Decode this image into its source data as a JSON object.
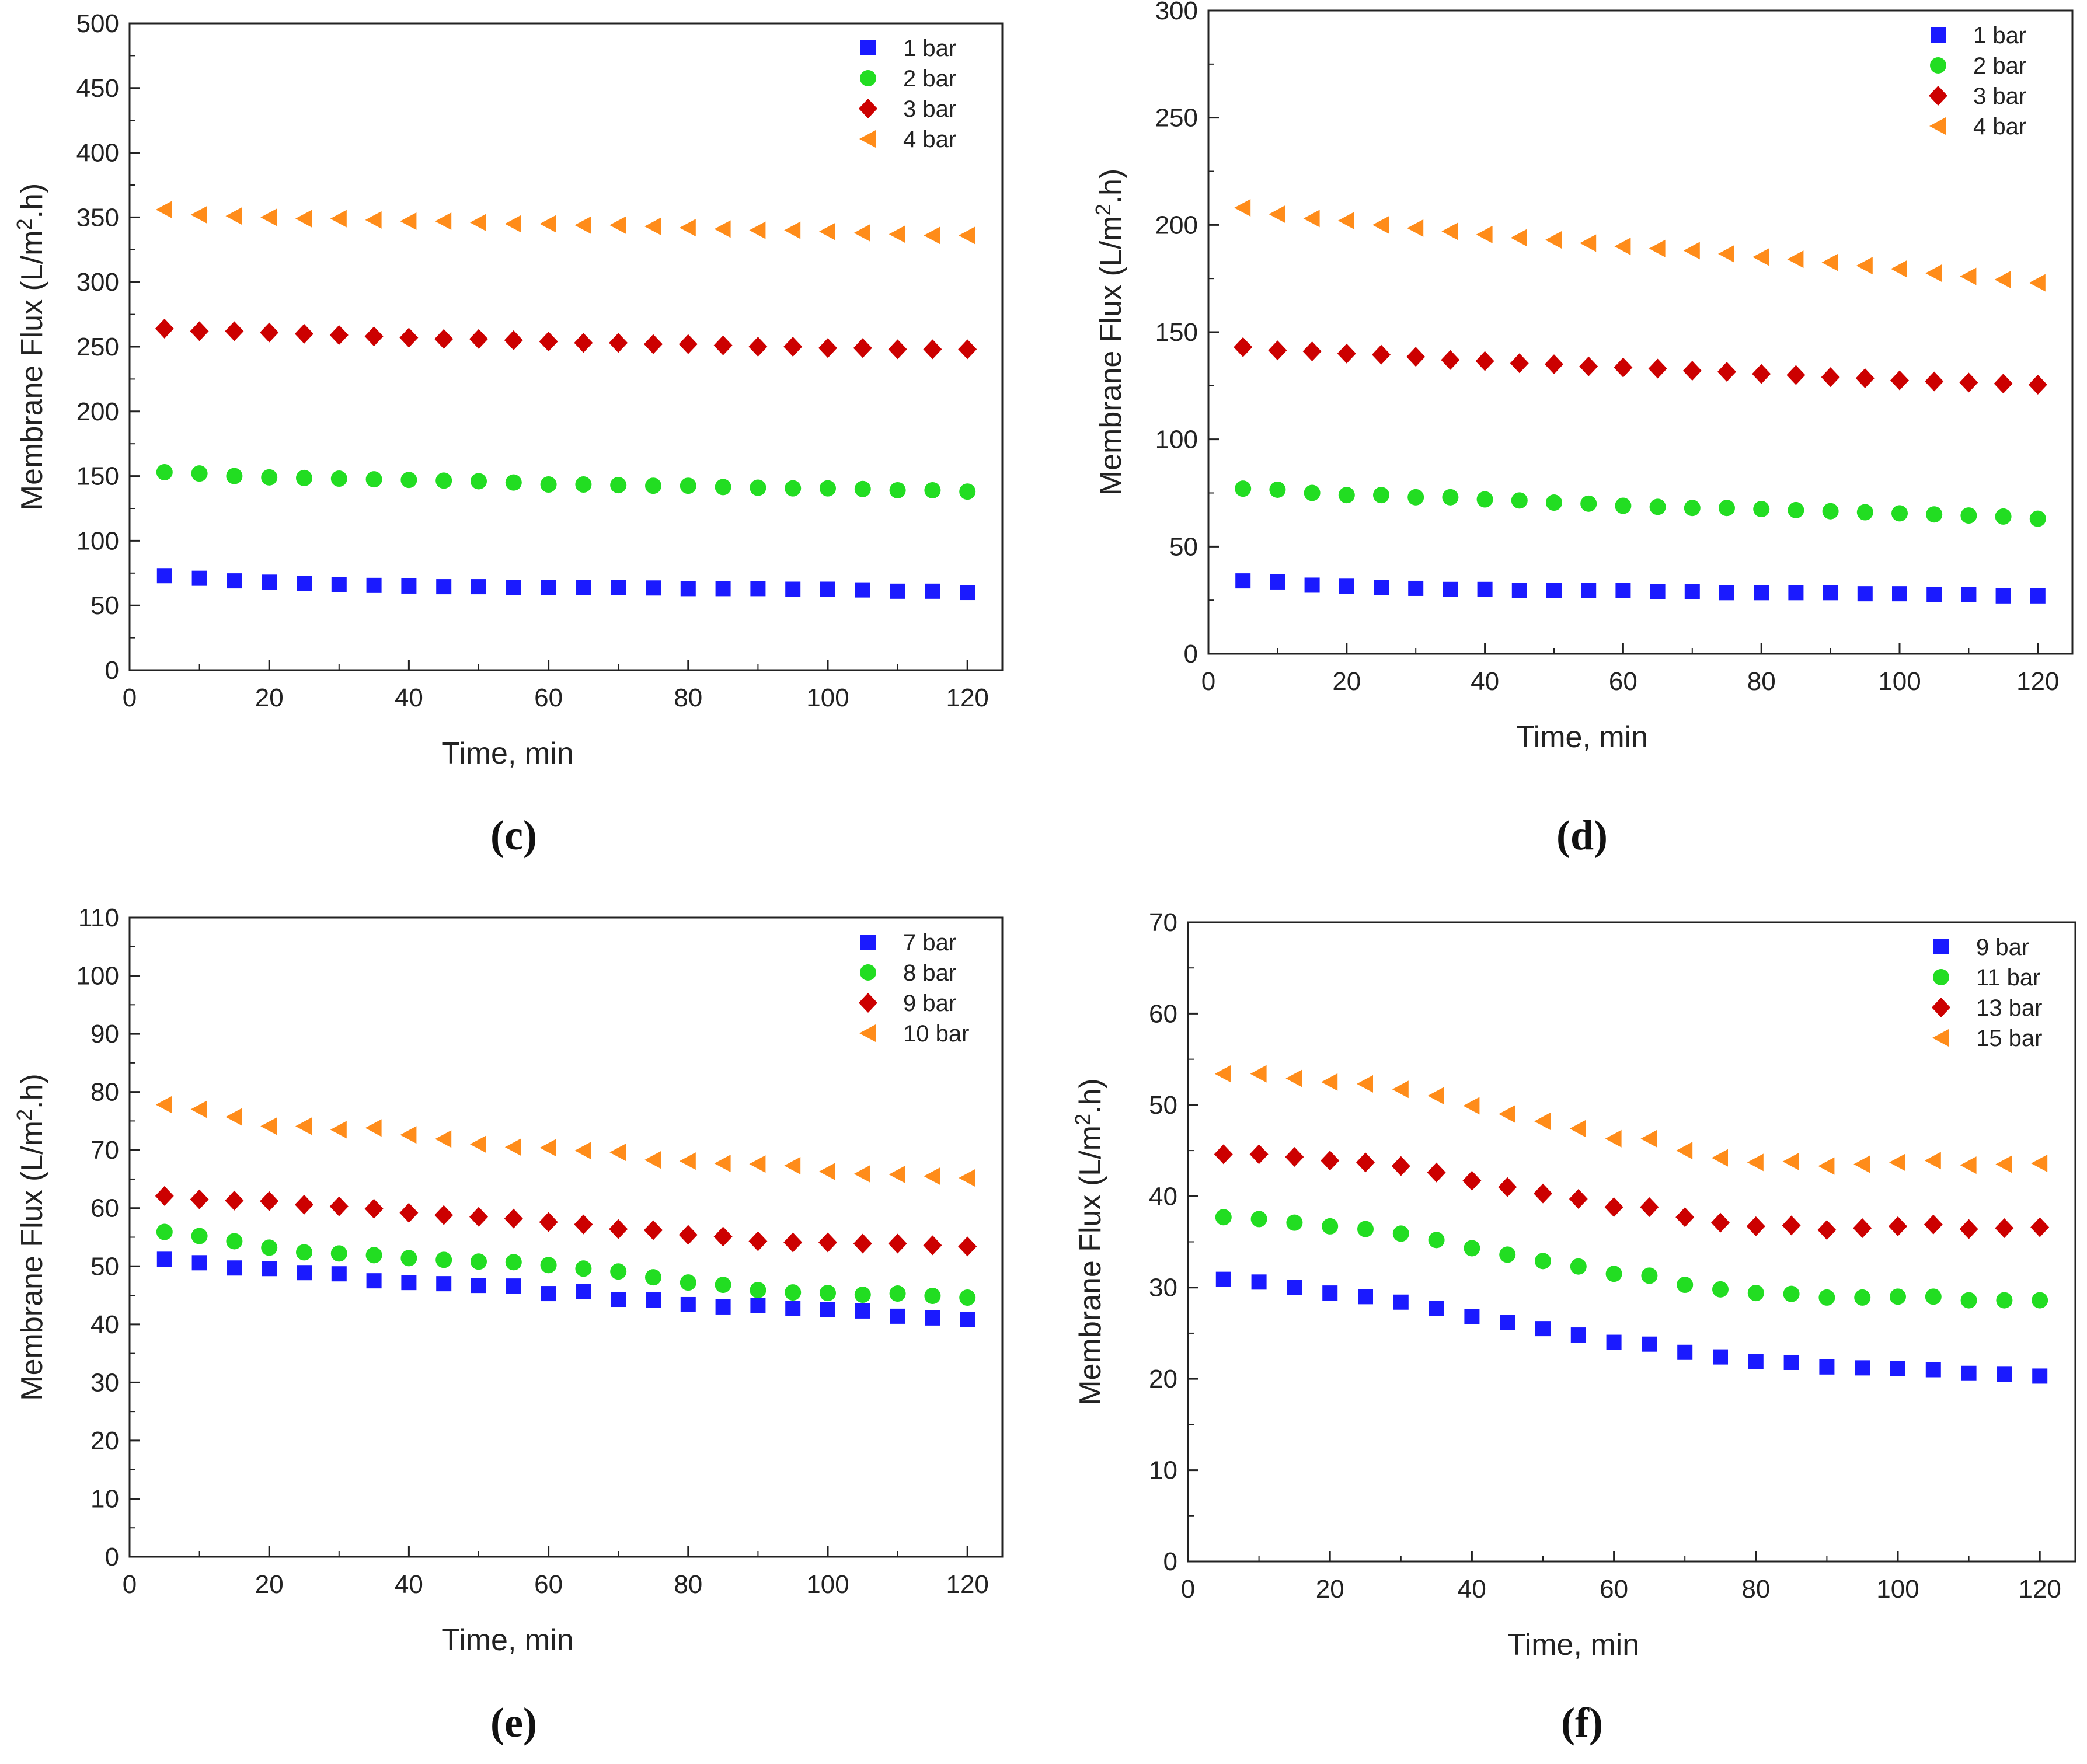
{
  "figure": {
    "captions": [
      "(c)",
      "(d)",
      "(e)",
      "(f)"
    ]
  },
  "chart_data": [
    {
      "type": "scatter",
      "panel": "(c)",
      "xlabel": "Time, min",
      "ylabel": "Membrane Flux (L/m2.h)",
      "xlim": [
        0,
        125
      ],
      "ylim": [
        0,
        500
      ],
      "xticks": [
        0,
        20,
        40,
        60,
        80,
        100,
        120
      ],
      "yticks": [
        0,
        50,
        100,
        150,
        200,
        250,
        300,
        350,
        400,
        450,
        500
      ],
      "legend_position": "top-right",
      "x": [
        5,
        10,
        15,
        20,
        25,
        30,
        35,
        40,
        45,
        50,
        55,
        60,
        65,
        70,
        75,
        80,
        85,
        90,
        95,
        100,
        105,
        110,
        115,
        120
      ],
      "series": [
        {
          "name": "1 bar",
          "marker": "square",
          "color": "#1a1aff",
          "values": [
            73,
            71,
            69,
            68,
            67,
            66,
            65.5,
            65,
            64.5,
            64.5,
            64,
            64,
            64,
            64,
            63.5,
            63,
            63,
            63,
            62.5,
            62.5,
            62,
            61,
            61,
            60
          ]
        },
        {
          "name": "2 bar",
          "marker": "circle",
          "color": "#22dd22",
          "values": [
            153,
            152,
            150,
            149,
            148.5,
            148,
            147.5,
            147,
            146.5,
            146,
            145,
            143.5,
            143.5,
            143,
            142.5,
            142.5,
            141.5,
            141,
            140.5,
            140.5,
            140,
            139,
            139,
            138
          ]
        },
        {
          "name": "3 bar",
          "marker": "diamond",
          "color": "#cc0000",
          "values": [
            264,
            262,
            262,
            261,
            260,
            259,
            258,
            257,
            256,
            256,
            255,
            254,
            253,
            253,
            252,
            252,
            251,
            250,
            250,
            249,
            249,
            248,
            248,
            248
          ]
        },
        {
          "name": "4 bar",
          "marker": "triangle-left",
          "color": "#ff8c1a",
          "values": [
            356,
            352,
            351,
            350,
            349,
            349,
            348,
            347,
            347,
            346,
            345,
            345,
            344,
            344,
            343,
            342,
            341,
            340,
            340,
            339,
            338,
            337,
            336,
            336
          ]
        }
      ]
    },
    {
      "type": "scatter",
      "panel": "(d)",
      "xlabel": "Time, min",
      "ylabel": "Membrane Flux (L/m2.h)",
      "xlim": [
        0,
        125
      ],
      "ylim": [
        0,
        300
      ],
      "xticks": [
        0,
        20,
        40,
        60,
        80,
        100,
        120
      ],
      "yticks": [
        0,
        50,
        100,
        150,
        200,
        250,
        300
      ],
      "legend_position": "top-right",
      "x": [
        5,
        10,
        15,
        20,
        25,
        30,
        35,
        40,
        45,
        50,
        55,
        60,
        65,
        70,
        75,
        80,
        85,
        90,
        95,
        100,
        105,
        110,
        115,
        120
      ],
      "series": [
        {
          "name": "1 bar",
          "marker": "square",
          "color": "#1a1aff",
          "values": [
            34,
            33.5,
            32,
            31.5,
            31,
            30.5,
            30,
            30,
            29.5,
            29.5,
            29.5,
            29.5,
            29,
            29,
            28.5,
            28.5,
            28.5,
            28.5,
            28,
            28,
            27.5,
            27.5,
            27,
            27
          ]
        },
        {
          "name": "2 bar",
          "marker": "circle",
          "color": "#22dd22",
          "values": [
            77,
            76.5,
            75,
            74,
            74,
            73,
            73,
            72,
            71.5,
            70.5,
            70,
            69,
            68.5,
            68,
            68,
            67.5,
            67,
            66.5,
            66,
            65.5,
            65,
            64.5,
            64,
            63
          ]
        },
        {
          "name": "3 bar",
          "marker": "diamond",
          "color": "#cc0000",
          "values": [
            143,
            141.5,
            141,
            140,
            139.5,
            138.5,
            137,
            136.5,
            135.5,
            135,
            134,
            133.5,
            133,
            132,
            131.5,
            130.5,
            130,
            129,
            128.5,
            127.5,
            127,
            126.5,
            126,
            125.5
          ]
        },
        {
          "name": "4 bar",
          "marker": "triangle-left",
          "color": "#ff8c1a",
          "values": [
            208,
            205,
            203,
            202,
            200,
            198.5,
            197,
            195.5,
            194,
            193,
            191.5,
            190,
            189,
            188,
            186.5,
            185,
            184,
            182.5,
            181,
            179.5,
            177.5,
            176,
            174.5,
            173
          ]
        }
      ]
    },
    {
      "type": "scatter",
      "panel": "(e)",
      "xlabel": "Time, min",
      "ylabel": "Membrane Flux (L/m2.h)",
      "xlim": [
        0,
        125
      ],
      "ylim": [
        0,
        110
      ],
      "xticks": [
        0,
        20,
        40,
        60,
        80,
        100,
        120
      ],
      "yticks": [
        0,
        10,
        20,
        30,
        40,
        50,
        60,
        70,
        80,
        90,
        100,
        110
      ],
      "legend_position": "top-right",
      "x": [
        5,
        10,
        15,
        20,
        25,
        30,
        35,
        40,
        45,
        50,
        55,
        60,
        65,
        70,
        75,
        80,
        85,
        90,
        95,
        100,
        105,
        110,
        115,
        120
      ],
      "series": [
        {
          "name": "7 bar",
          "marker": "square",
          "color": "#1a1aff",
          "values": [
            51.2,
            50.6,
            49.7,
            49.6,
            48.9,
            48.7,
            47.5,
            47.2,
            47,
            46.7,
            46.6,
            45.3,
            45.7,
            44.3,
            44.2,
            43.4,
            43,
            43.2,
            42.7,
            42.5,
            42.3,
            41.4,
            41.1,
            40.8
          ]
        },
        {
          "name": "8 bar",
          "marker": "circle",
          "color": "#22dd22",
          "values": [
            55.9,
            55.2,
            54.3,
            53.2,
            52.4,
            52.2,
            51.9,
            51.4,
            51.1,
            50.8,
            50.7,
            50.2,
            49.6,
            49.1,
            48.1,
            47.2,
            46.8,
            45.9,
            45.5,
            45.4,
            45.1,
            45.3,
            44.9,
            44.6
          ]
        },
        {
          "name": "9 bar",
          "marker": "diamond",
          "color": "#cc0000",
          "values": [
            62.1,
            61.5,
            61.3,
            61.2,
            60.6,
            60.3,
            59.9,
            59.2,
            58.8,
            58.5,
            58.2,
            57.6,
            57.2,
            56.4,
            56.2,
            55.4,
            55.1,
            54.3,
            54.1,
            54.1,
            53.9,
            53.9,
            53.6,
            53.4
          ]
        },
        {
          "name": "10 bar",
          "marker": "triangle-left",
          "color": "#ff8c1a",
          "values": [
            77.8,
            77,
            75.7,
            74.1,
            74.1,
            73.5,
            73.8,
            72.6,
            71.9,
            71,
            70.5,
            70.4,
            69.9,
            69.6,
            68.3,
            68.1,
            67.7,
            67.6,
            67.3,
            66.3,
            65.9,
            65.8,
            65.5,
            65.2
          ]
        }
      ]
    },
    {
      "type": "scatter",
      "panel": "(f)",
      "xlabel": "Time, min",
      "ylabel": "Membrane Flux (L/m2.h)",
      "xlim": [
        0,
        125
      ],
      "ylim": [
        0,
        70
      ],
      "xticks": [
        0,
        20,
        40,
        60,
        80,
        100,
        120
      ],
      "yticks": [
        0,
        10,
        20,
        30,
        40,
        50,
        60,
        70
      ],
      "legend_position": "top-right",
      "x": [
        5,
        10,
        15,
        20,
        25,
        30,
        35,
        40,
        45,
        50,
        55,
        60,
        65,
        70,
        75,
        80,
        85,
        90,
        95,
        100,
        105,
        110,
        115,
        120
      ],
      "series": [
        {
          "name": "9 bar",
          "marker": "square",
          "color": "#1a1aff",
          "values": [
            30.9,
            30.6,
            30,
            29.4,
            29,
            28.4,
            27.7,
            26.8,
            26.2,
            25.5,
            24.8,
            24,
            23.8,
            22.9,
            22.4,
            21.9,
            21.8,
            21.3,
            21.2,
            21.1,
            21,
            20.6,
            20.5,
            20.3
          ]
        },
        {
          "name": "11 bar",
          "marker": "circle",
          "color": "#22dd22",
          "values": [
            37.7,
            37.5,
            37.1,
            36.7,
            36.4,
            35.9,
            35.2,
            34.3,
            33.6,
            32.9,
            32.3,
            31.5,
            31.3,
            30.3,
            29.8,
            29.4,
            29.3,
            28.9,
            28.9,
            29,
            29,
            28.6,
            28.6,
            28.6
          ]
        },
        {
          "name": "13 bar",
          "marker": "diamond",
          "color": "#cc0000",
          "values": [
            44.6,
            44.6,
            44.3,
            43.9,
            43.7,
            43.3,
            42.6,
            41.7,
            41,
            40.3,
            39.7,
            38.8,
            38.8,
            37.7,
            37.1,
            36.7,
            36.8,
            36.3,
            36.5,
            36.7,
            36.9,
            36.4,
            36.5,
            36.6
          ]
        },
        {
          "name": "15 bar",
          "marker": "triangle-left",
          "color": "#ff8c1a",
          "values": [
            53.4,
            53.4,
            52.9,
            52.5,
            52.3,
            51.7,
            51,
            49.9,
            49,
            48.2,
            47.4,
            46.3,
            46.3,
            45,
            44.2,
            43.7,
            43.8,
            43.3,
            43.5,
            43.7,
            43.9,
            43.4,
            43.5,
            43.6
          ]
        }
      ]
    }
  ]
}
